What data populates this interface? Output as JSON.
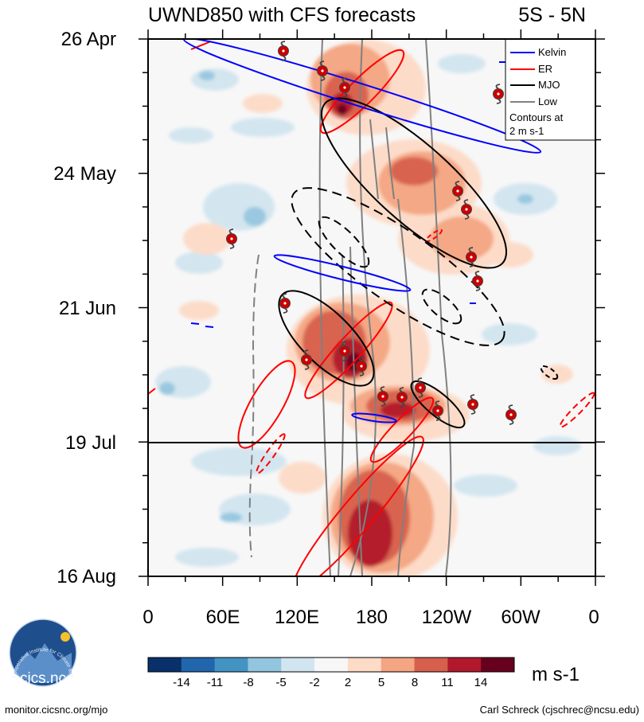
{
  "chart_data": {
    "type": "heatmap",
    "title": "UWND850 with CFS forecasts",
    "region": "5S - 5N",
    "variable": "UWND850",
    "x_ticks": [
      "0",
      "60E",
      "120E",
      "180",
      "120W",
      "60W",
      "0"
    ],
    "x_tick_degrees": [
      0,
      60,
      120,
      180,
      240,
      300,
      360
    ],
    "y_ticks": [
      "26 Apr",
      "24 May",
      "21 Jun",
      "19 Jul",
      "16 Aug"
    ],
    "xlim": [
      0,
      360
    ],
    "time_range": [
      "26 Apr",
      "16 Aug"
    ],
    "forecast_start": "19 Jul",
    "colorbar": {
      "levels": [
        -14,
        -11,
        -8,
        -5,
        -2,
        2,
        5,
        8,
        11,
        14
      ],
      "level_labels": [
        "-14",
        "-11",
        "-8",
        "-5",
        "-2",
        "2",
        "5",
        "8",
        "11",
        "14"
      ],
      "colors": [
        "#08306b",
        "#2166ac",
        "#4393c3",
        "#92c5de",
        "#d1e5f0",
        "#f7f7f7",
        "#fddbc7",
        "#f4a582",
        "#d6604d",
        "#b2182b",
        "#67001f"
      ],
      "units": "m s-1"
    },
    "legend": {
      "entries": [
        {
          "name": "Kelvin",
          "color": "#0000ff"
        },
        {
          "name": "ER",
          "color": "#ff0000"
        },
        {
          "name": "MJO",
          "color": "#000000"
        },
        {
          "name": "Low",
          "color": "#808080"
        }
      ],
      "note_line1": "Contours at",
      "note_line2": "2 m s-1",
      "position": "top-right"
    }
  },
  "footer": {
    "logo_text": "cics.nc",
    "logo_ring_text": "Cooperative Institute for Climate and Satellites",
    "url": "monitor.cicsnc.org/mjo",
    "credit": "Carl Schreck (cjschrec@ncsu.edu)"
  }
}
